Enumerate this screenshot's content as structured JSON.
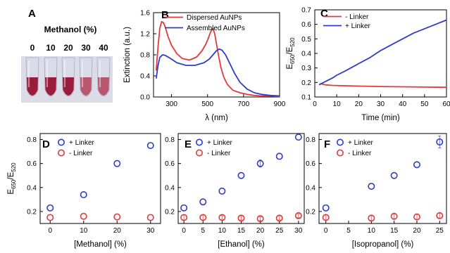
{
  "panel_a": {
    "letter": "A",
    "title": "Methanol (%)",
    "tube_labels": [
      "0",
      "10",
      "20",
      "30",
      "40"
    ],
    "colors": {
      "liquid": "#9a1d3e",
      "liquid_light": "#b9576f",
      "tube": "#d9dbe8",
      "background": "#dcdce8"
    }
  },
  "chart_data": [
    {
      "panel": "B",
      "type": "line",
      "xlabel": "λ (nm)",
      "ylabel": "Extinction (a.u.)",
      "xlim": [
        200,
        900
      ],
      "ylim": [
        0,
        1.6
      ],
      "xticks": [
        300,
        500,
        700,
        900
      ],
      "yticks": [
        0,
        0.4,
        0.8,
        1.2,
        1.6
      ],
      "ytick_labels": [
        "0.0",
        "0.4",
        "0.8",
        "1.2",
        "1.6"
      ],
      "legend_position": "top-right",
      "series": [
        {
          "name": "Dispersed AuNPs",
          "color": "#e03a3a",
          "x": [
            215,
            225,
            235,
            245,
            255,
            265,
            280,
            300,
            330,
            360,
            400,
            440,
            470,
            490,
            505,
            515,
            525,
            530,
            540,
            550,
            560,
            575,
            590,
            610,
            640,
            680,
            720,
            760,
            800,
            850,
            900
          ],
          "y": [
            0.5,
            0.95,
            1.3,
            1.43,
            1.41,
            1.33,
            1.15,
            0.98,
            0.82,
            0.73,
            0.7,
            0.76,
            0.88,
            1.0,
            1.12,
            1.22,
            1.28,
            1.3,
            1.2,
            1.0,
            0.8,
            0.55,
            0.38,
            0.24,
            0.13,
            0.08,
            0.05,
            0.03,
            0.02,
            0.02,
            0.01
          ]
        },
        {
          "name": "Assembled AuNPs",
          "color": "#2e3cc8",
          "x": [
            215,
            225,
            235,
            250,
            265,
            290,
            330,
            380,
            430,
            480,
            510,
            530,
            550,
            565,
            580,
            600,
            620,
            650,
            680,
            720,
            760,
            800,
            850,
            900
          ],
          "y": [
            0.35,
            0.6,
            0.75,
            0.8,
            0.79,
            0.74,
            0.65,
            0.6,
            0.6,
            0.65,
            0.72,
            0.8,
            0.88,
            0.91,
            0.89,
            0.8,
            0.66,
            0.45,
            0.28,
            0.15,
            0.08,
            0.05,
            0.03,
            0.02
          ]
        }
      ]
    },
    {
      "panel": "C",
      "type": "line",
      "xlabel": "Time (min)",
      "ylabel_main": "E",
      "ylabel_sub1": "650",
      "ylabel_mid": "/E",
      "ylabel_sub2": "520",
      "xlim": [
        0,
        60
      ],
      "ylim": [
        0.1,
        0.7
      ],
      "xticks": [
        0,
        10,
        20,
        30,
        40,
        50,
        60
      ],
      "yticks": [
        0.1,
        0.2,
        0.3,
        0.4,
        0.5,
        0.6,
        0.7
      ],
      "ytick_labels": [
        "0.1",
        "0.2",
        "0.3",
        "0.4",
        "0.5",
        "0.6",
        "0.7"
      ],
      "legend_position": "top-left",
      "series": [
        {
          "name": "- Linker",
          "color": "#e03a3a",
          "x": [
            2,
            3,
            5,
            8,
            12,
            20,
            30,
            40,
            50,
            60
          ],
          "y": [
            0.185,
            0.19,
            0.183,
            0.18,
            0.178,
            0.175,
            0.172,
            0.17,
            0.168,
            0.167
          ]
        },
        {
          "name": "+ Linker",
          "color": "#2e3cc8",
          "x": [
            2,
            4,
            6,
            8,
            10,
            14,
            20,
            25,
            30,
            35,
            40,
            45,
            50,
            55,
            60
          ],
          "y": [
            0.185,
            0.2,
            0.215,
            0.23,
            0.25,
            0.28,
            0.33,
            0.37,
            0.42,
            0.46,
            0.5,
            0.54,
            0.57,
            0.6,
            0.63
          ]
        }
      ]
    },
    {
      "panel": "D",
      "type": "scatter",
      "xlabel": "[Methanol] (%)",
      "ylabel_main": "E",
      "ylabel_sub1": "650",
      "ylabel_mid": "/E",
      "ylabel_sub2": "520",
      "xlim": [
        -3,
        33
      ],
      "ylim": [
        0.1,
        0.85
      ],
      "xticks": [
        0,
        10,
        20,
        30
      ],
      "yticks": [
        0.2,
        0.4,
        0.6,
        0.8
      ],
      "ytick_labels": [
        "0.2",
        "0.4",
        "0.6",
        "0.8"
      ],
      "legend_position": "top-left",
      "series": [
        {
          "name": "+ Linker",
          "color": "#2e3cc8",
          "x": [
            0,
            10,
            20,
            30
          ],
          "y": [
            0.23,
            0.34,
            0.6,
            0.75
          ]
        },
        {
          "name": "- Linker",
          "color": "#e03a3a",
          "x": [
            0,
            10,
            20,
            30
          ],
          "y": [
            0.15,
            0.16,
            0.155,
            0.15
          ]
        }
      ]
    },
    {
      "panel": "E",
      "type": "scatter",
      "xlabel": "[Ethanol] (%)",
      "xlim": [
        -1.5,
        31.5
      ],
      "ylim": [
        0.1,
        0.85
      ],
      "xticks": [
        0,
        5,
        10,
        15,
        20,
        25,
        30
      ],
      "yticks": [
        0.2,
        0.4,
        0.6,
        0.8
      ],
      "ytick_labels": [
        "0.2",
        "0.4",
        "0.6",
        "0.8"
      ],
      "legend_position": "top-left",
      "series": [
        {
          "name": "+ Linker",
          "color": "#2e3cc8",
          "x": [
            0,
            5,
            10,
            15,
            20,
            25,
            30
          ],
          "y": [
            0.23,
            0.28,
            0.37,
            0.5,
            0.6,
            0.66,
            0.82
          ],
          "err": [
            0,
            0,
            0,
            0,
            0.03,
            0,
            0
          ]
        },
        {
          "name": "- Linker",
          "color": "#e03a3a",
          "x": [
            0,
            5,
            10,
            15,
            20,
            25,
            30
          ],
          "y": [
            0.15,
            0.15,
            0.15,
            0.145,
            0.14,
            0.145,
            0.165
          ],
          "err": [
            0.02,
            0.02,
            0.015,
            0.015,
            0.015,
            0.015,
            0.015
          ]
        }
      ]
    },
    {
      "panel": "F",
      "type": "scatter",
      "xlabel": "[Isopropanol] (%)",
      "xlim": [
        -1.5,
        26.5
      ],
      "ylim": [
        0.1,
        0.85
      ],
      "xticks": [
        0,
        5,
        10,
        15,
        20,
        25
      ],
      "yticks": [
        0.2,
        0.4,
        0.6,
        0.8
      ],
      "ytick_labels": [
        "0.2",
        "0.4",
        "0.6",
        "0.8"
      ],
      "legend_position": "top-left",
      "series": [
        {
          "name": "+ Linker",
          "color": "#2e3cc8",
          "x": [
            0,
            10,
            15,
            20,
            25
          ],
          "y": [
            0.23,
            0.41,
            0.5,
            0.59,
            0.78
          ],
          "err": [
            0,
            0,
            0,
            0,
            0.05
          ]
        },
        {
          "name": "- Linker",
          "color": "#e03a3a",
          "x": [
            0,
            10,
            15,
            20,
            25
          ],
          "y": [
            0.15,
            0.145,
            0.16,
            0.155,
            0.165
          ],
          "err": [
            0.02,
            0.02,
            0.02,
            0.02,
            0.02
          ]
        }
      ]
    }
  ]
}
